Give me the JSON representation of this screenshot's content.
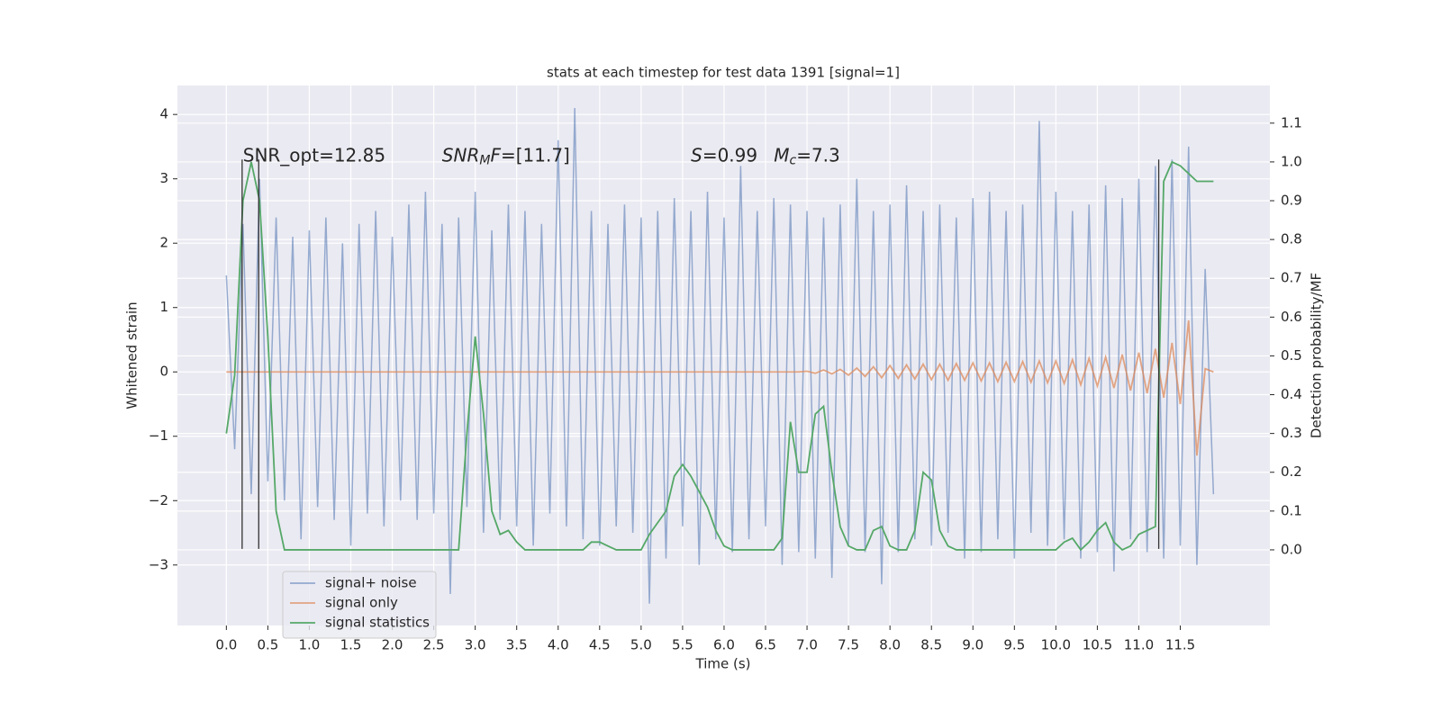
{
  "chart_data": {
    "type": "line",
    "title": "stats at each timestep for test data 1391 [signal=1]",
    "xlabel": "Time (s)",
    "ylabel": "Whitened strain",
    "y2label": "Detection probability/MF",
    "xlim": [
      -0.59,
      12.58
    ],
    "ylim": [
      -3.94,
      4.45
    ],
    "y2lim": [
      -0.195,
      1.197
    ],
    "grid": true,
    "legend": "lower left",
    "xticks": [
      {
        "value": 0,
        "label": "0.0"
      },
      0.5,
      {
        "value": 1,
        "label": "1.0"
      },
      1.5,
      {
        "value": 2,
        "label": "2.0"
      },
      2.5,
      {
        "value": 3,
        "label": "3.0"
      },
      3.5,
      {
        "value": 4,
        "label": "4.0"
      },
      4.5,
      {
        "value": 5,
        "label": "5.0"
      },
      5.5,
      {
        "value": 6,
        "label": "6.0"
      },
      6.5,
      {
        "value": 7,
        "label": "7.0"
      },
      7.5,
      {
        "value": 8,
        "label": "8.0"
      },
      8.5,
      {
        "value": 9,
        "label": "9.0"
      },
      9.5,
      {
        "value": 10,
        "label": "10.0"
      },
      10.5,
      {
        "value": 11,
        "label": "11.0"
      },
      11.5
    ],
    "yticks": [
      {
        "value": -3,
        "label": "−3"
      },
      {
        "value": -2,
        "label": "−2"
      },
      {
        "value": -1,
        "label": "−1"
      },
      0,
      1,
      2,
      3,
      4
    ],
    "y2ticks": [
      {
        "value": 0,
        "label": "0.0"
      },
      0.1,
      0.2,
      0.3,
      0.4,
      0.5,
      0.6,
      0.7,
      0.8,
      0.9,
      {
        "value": 1,
        "label": "1.0"
      },
      1.1
    ],
    "x": [
      0,
      0.1,
      0.2,
      0.3,
      0.4,
      0.5,
      0.6,
      0.7,
      0.8,
      0.9,
      1,
      1.1,
      1.2,
      1.3,
      1.4,
      1.5,
      1.6,
      1.7,
      1.8,
      1.9,
      2,
      2.1,
      2.2,
      2.3,
      2.4,
      2.5,
      2.6,
      2.7,
      2.8,
      2.9,
      3,
      3.1,
      3.2,
      3.3,
      3.4,
      3.5,
      3.6,
      3.7,
      3.8,
      3.9,
      4,
      4.1,
      4.2,
      4.3,
      4.4,
      4.5,
      4.6,
      4.7,
      4.8,
      4.9,
      5,
      5.1,
      5.2,
      5.3,
      5.4,
      5.5,
      5.6,
      5.7,
      5.8,
      5.9,
      6,
      6.1,
      6.2,
      6.3,
      6.4,
      6.5,
      6.6,
      6.7,
      6.8,
      6.9,
      7,
      7.1,
      7.2,
      7.3,
      7.4,
      7.5,
      7.6,
      7.7,
      7.8,
      7.9,
      8,
      8.1,
      8.2,
      8.3,
      8.4,
      8.5,
      8.6,
      8.7,
      8.8,
      8.9,
      9,
      9.1,
      9.2,
      9.3,
      9.4,
      9.5,
      9.6,
      9.7,
      9.8,
      9.9,
      10,
      10.1,
      10.2,
      10.3,
      10.4,
      10.5,
      10.6,
      10.7,
      10.8,
      10.9,
      11,
      11.1,
      11.2,
      11.3,
      11.4,
      11.5,
      11.6,
      11.7,
      11.8,
      11.9
    ],
    "series": [
      {
        "name": "signal+ noise",
        "color": "#4c72b0",
        "values": [
          1.5,
          -1.2,
          2.3,
          -1.9,
          3.0,
          -1.7,
          2.4,
          -2.0,
          2.1,
          -2.6,
          2.2,
          -2.1,
          2.4,
          -2.3,
          2.0,
          -2.7,
          2.3,
          -2.2,
          2.5,
          -2.4,
          2.1,
          -2.0,
          2.6,
          -2.3,
          2.8,
          -2.2,
          2.3,
          -3.45,
          2.4,
          -2.1,
          2.8,
          -2.5,
          2.2,
          -2.3,
          2.6,
          -2.4,
          2.5,
          -2.7,
          2.3,
          -2.2,
          3.6,
          -2.4,
          4.1,
          -2.6,
          2.5,
          -2.7,
          2.3,
          -2.4,
          2.6,
          -2.5,
          2.4,
          -3.6,
          2.5,
          -2.9,
          2.7,
          -2.4,
          2.5,
          -3.0,
          2.8,
          -2.6,
          2.4,
          -2.8,
          3.2,
          -2.6,
          2.5,
          -2.4,
          2.7,
          -3.0,
          2.6,
          -2.8,
          2.5,
          -2.9,
          2.4,
          -3.2,
          2.6,
          -2.7,
          3.0,
          -2.8,
          2.5,
          -3.3,
          2.6,
          -2.8,
          2.9,
          -2.6,
          2.5,
          -2.7,
          2.6,
          -2.5,
          2.4,
          -2.9,
          2.7,
          -2.8,
          2.8,
          -2.6,
          2.5,
          -2.9,
          2.6,
          -2.5,
          3.9,
          -2.7,
          2.8,
          -2.6,
          2.5,
          -2.9,
          2.6,
          -2.8,
          2.9,
          -3.1,
          2.7,
          -2.6,
          3.0,
          -2.8,
          3.2,
          -2.9,
          3.3,
          -2.7,
          3.5,
          -3.0,
          1.6,
          -1.9
        ]
      },
      {
        "name": "signal only",
        "color": "#dd8452",
        "values": [
          0,
          0,
          0,
          0,
          0,
          0,
          0,
          0,
          0,
          0,
          0,
          0,
          0,
          0,
          0,
          0,
          0,
          0,
          0,
          0,
          0,
          0,
          0,
          0,
          0,
          0,
          0,
          0,
          0,
          0,
          0,
          0,
          0,
          0,
          0,
          0,
          0,
          0,
          0,
          0,
          0,
          0,
          0,
          0,
          0,
          0,
          0,
          0,
          0,
          0,
          0,
          0,
          0,
          0,
          0,
          0,
          0,
          0,
          0,
          0,
          0,
          0,
          0,
          0,
          0,
          0,
          0,
          0,
          0,
          0,
          0.01,
          -0.02,
          0.03,
          -0.03,
          0.04,
          -0.05,
          0.06,
          -0.07,
          0.08,
          -0.09,
          0.1,
          -0.1,
          0.11,
          -0.11,
          0.12,
          -0.12,
          0.12,
          -0.13,
          0.13,
          -0.13,
          0.14,
          -0.14,
          0.14,
          -0.15,
          0.15,
          -0.15,
          0.16,
          -0.16,
          0.17,
          -0.17,
          0.17,
          -0.18,
          0.19,
          -0.2,
          0.21,
          -0.22,
          0.23,
          -0.25,
          0.27,
          -0.29,
          0.3,
          -0.33,
          0.36,
          -0.4,
          0.45,
          -0.5,
          0.8,
          -1.3,
          0.05,
          0
        ]
      },
      {
        "name": "signal statistics",
        "color": "#55a868",
        "axis": "y2",
        "values": [
          0.3,
          0.45,
          0.9,
          1.0,
          0.9,
          0.55,
          0.1,
          0,
          0,
          0,
          0,
          0,
          0,
          0,
          0,
          0,
          0,
          0,
          0,
          0,
          0,
          0,
          0,
          0,
          0,
          0,
          0,
          0,
          0,
          0.3,
          0.55,
          0.35,
          0.1,
          0.04,
          0.05,
          0.02,
          0,
          0,
          0,
          0,
          0,
          0,
          0,
          0,
          0.02,
          0.02,
          0.01,
          0,
          0,
          0,
          0,
          0.04,
          0.07,
          0.1,
          0.19,
          0.22,
          0.19,
          0.15,
          0.11,
          0.05,
          0.01,
          0,
          0,
          0,
          0,
          0,
          0,
          0.03,
          0.33,
          0.2,
          0.2,
          0.35,
          0.37,
          0.2,
          0.06,
          0.01,
          0,
          0,
          0.05,
          0.06,
          0.01,
          0,
          0,
          0.05,
          0.2,
          0.18,
          0.05,
          0.01,
          0,
          0,
          0,
          0,
          0,
          0,
          0,
          0,
          0,
          0,
          0,
          0,
          0,
          0.02,
          0.03,
          0,
          0.02,
          0.05,
          0.07,
          0.02,
          0,
          0.01,
          0.04,
          0.05,
          0.06,
          0.95,
          1.0,
          0.99,
          0.97,
          0.95,
          0.95,
          0.95
        ]
      }
    ],
    "vlines": [
      0.19,
      0.39,
      11.24
    ],
    "vline_range": [
      -2.75,
      3.3
    ],
    "annotations": [
      [
        {
          "text": "SNR_opt=12.85"
        }
      ],
      [
        {
          "text": "SNR",
          "italic": true
        },
        {
          "text": "M",
          "italic": true,
          "sub": true
        },
        {
          "text": "F",
          "italic": true
        },
        {
          "text": "=[11.7]"
        }
      ],
      [
        {
          "text": "S",
          "italic": true
        },
        {
          "text": "=0.99"
        }
      ],
      [
        {
          "text": "M",
          "italic": true
        },
        {
          "text": "c",
          "italic": true,
          "sub": true
        },
        {
          "text": "=7.3"
        }
      ]
    ]
  }
}
